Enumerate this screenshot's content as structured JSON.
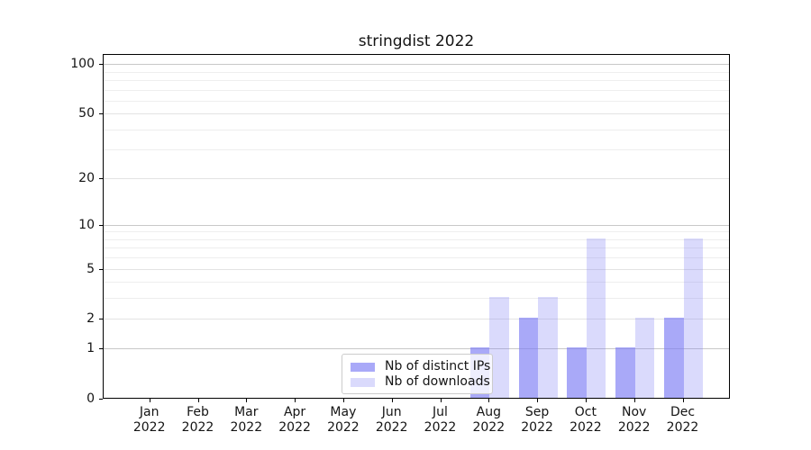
{
  "title": "stringdist 2022",
  "colors": {
    "bar_ips": "rgba(123,123,245,0.65)",
    "bar_downloads": "rgba(123,123,245,0.28)",
    "grid_major": "#c8c8c8",
    "grid_mid": "#e3e3e3",
    "grid_minor": "#eeeeee",
    "axis": "#000000",
    "text": "#141414",
    "legend_border": "#cccccc",
    "legend_bg": "rgba(255,255,255,0.8)"
  },
  "legend": {
    "items": [
      {
        "key": "ips",
        "label": "Nb of distinct IPs"
      },
      {
        "key": "downloads",
        "label": "Nb of downloads"
      }
    ]
  },
  "x_axis": {
    "months": [
      "Jan",
      "Feb",
      "Mar",
      "Apr",
      "May",
      "Jun",
      "Jul",
      "Aug",
      "Sep",
      "Oct",
      "Nov",
      "Dec"
    ],
    "year": "2022"
  },
  "y_axis": {
    "tick_labels": [
      "0",
      "1",
      "2",
      "5",
      "10",
      "20",
      "50",
      "100"
    ],
    "tick_values": [
      0,
      1,
      2,
      5,
      10,
      20,
      50,
      100
    ],
    "major_gridlines": [
      1,
      10,
      100
    ],
    "mid_gridlines": [
      2,
      5,
      20,
      50
    ],
    "minor_gridlines": [
      3,
      4,
      6,
      7,
      8,
      9,
      30,
      40,
      60,
      70,
      80,
      90
    ]
  },
  "chart_data": {
    "type": "bar",
    "title": "stringdist 2022",
    "categories": [
      "Jan 2022",
      "Feb 2022",
      "Mar 2022",
      "Apr 2022",
      "May 2022",
      "Jun 2022",
      "Jul 2022",
      "Aug 2022",
      "Sep 2022",
      "Oct 2022",
      "Nov 2022",
      "Dec 2022"
    ],
    "series": [
      {
        "name": "Nb of distinct IPs",
        "key": "ips",
        "values": [
          0,
          0,
          0,
          0,
          0,
          0,
          0,
          1,
          2,
          1,
          1,
          2
        ]
      },
      {
        "name": "Nb of downloads",
        "key": "downloads",
        "values": [
          0,
          0,
          0,
          0,
          0,
          0,
          0,
          3,
          3,
          8,
          2,
          8
        ]
      }
    ],
    "xlabel": "",
    "ylabel": "",
    "yscale": "log1p",
    "yticks": [
      0,
      1,
      2,
      5,
      10,
      20,
      50,
      100
    ],
    "ylim": [
      0,
      115
    ],
    "grid": true,
    "legend_position": "inside lower-center"
  }
}
